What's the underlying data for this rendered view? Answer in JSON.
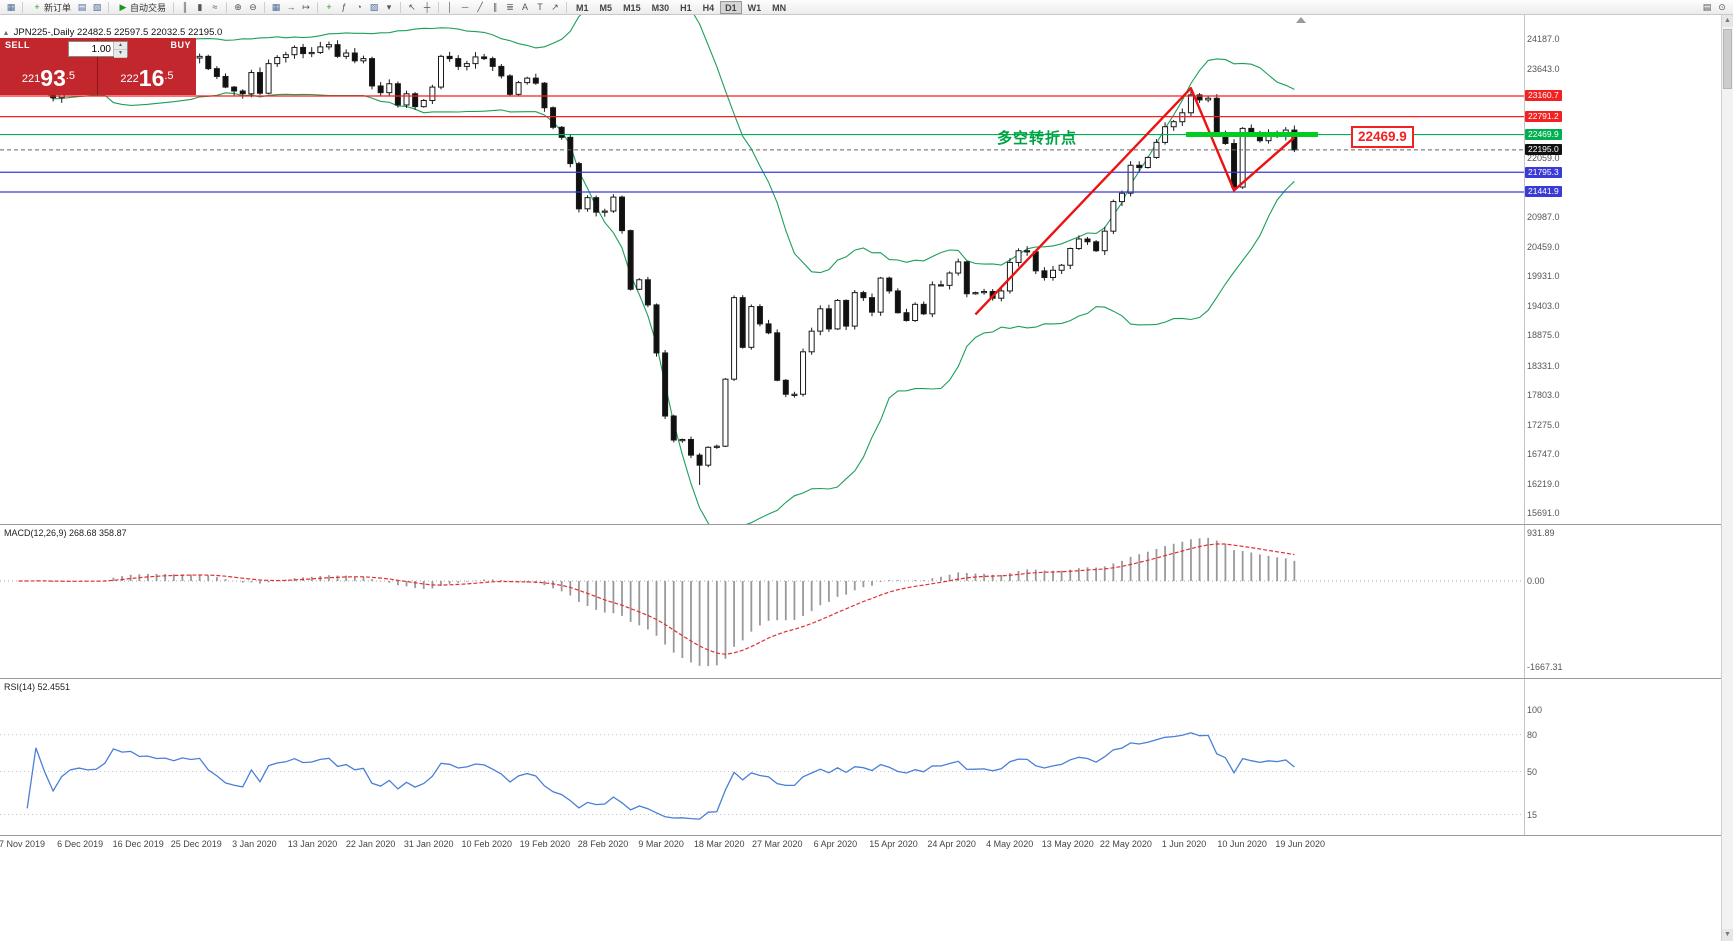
{
  "toolbar": {
    "new_order_label": "新订单",
    "auto_trading_label": "自动交易",
    "timeframes": [
      "M1",
      "M5",
      "M15",
      "M30",
      "H1",
      "H4",
      "D1",
      "W1",
      "MN"
    ],
    "active_timeframe": "D1",
    "icons": {
      "chart": "▦",
      "chart_windows": "▤",
      "profiles": "▧",
      "new_order_plus": "+",
      "autoplay": "▶",
      "bar_chart": "║",
      "candlestick_chart": "▮",
      "line_chart": "≈",
      "zoom_in": "⊕",
      "zoom_out": "⊖",
      "tile_windows": "▦",
      "auto_scroll": "→",
      "chart_shift": "↦",
      "indicators": "ƒ",
      "add_indicator": "+",
      "periods": "◔",
      "templates": "▨",
      "cursor": "↖",
      "crosshair": "┼",
      "vertical_line": "│",
      "horizontal_line": "─",
      "trendline": "╱",
      "channel": "∥",
      "fibonacci": "≣",
      "text": "A",
      "text_label": "T",
      "arrows": "↗",
      "dropdown": "▾",
      "search": "⊙",
      "print": "▤",
      "scroll_up": "▲",
      "scroll_down": "▼"
    }
  },
  "header": {
    "toggle_icon": "▴",
    "symbol": "JPN225-,Daily",
    "ohlc": "22482.5 22597.5 22032.5 22195.0"
  },
  "trade_panel": {
    "sell_label": "SELL",
    "buy_label": "BUY",
    "lot": "1.00",
    "sell_price": {
      "full": "22193.5",
      "prefix": "221",
      "big": "93",
      "frac": ".5"
    },
    "buy_price": {
      "full": "22216.5",
      "prefix": "222",
      "big": "16",
      "frac": ".5"
    }
  },
  "colors": {
    "resistance_red": "#f32222",
    "support_blue": "#3a3ad6",
    "pivot_green": "#00b050",
    "pivot_segment_green": "#00cc22",
    "current_price_badge": "#111111",
    "bollinger_green": "#1e9e5a",
    "candle_up_fill": "#ffffff",
    "candle_down_fill": "#111111",
    "macd_histogram": "#999999",
    "macd_signal_red": "#e03030",
    "rsi_blue": "#4a7fd8",
    "trend_red": "#ee1111"
  },
  "chart_data": {
    "type": "candlestick",
    "symbol": "JPN225-,Daily",
    "ohlc_display": {
      "open": "22482.5",
      "high": "22597.5",
      "low": "22032.5",
      "close": "22195.0"
    },
    "current_price": 22195.0,
    "y_tick_labels": [
      "24187.0",
      "23643.0",
      "22059.0",
      "20987.0",
      "20459.0",
      "19931.0",
      "19403.0",
      "18875.0",
      "18331.0",
      "17803.0",
      "17275.0",
      "16747.0",
      "16219.0",
      "15691.0"
    ],
    "x_tick_labels": [
      "7 Nov 2019",
      "6 Dec 2019",
      "16 Dec 2019",
      "25 Dec 2019",
      "3 Jan 2020",
      "13 Jan 2020",
      "22 Jan 2020",
      "31 Jan 2020",
      "10 Feb 2020",
      "19 Feb 2020",
      "28 Feb 2020",
      "9 Mar 2020",
      "18 Mar 2020",
      "27 Mar 2020",
      "6 Apr 2020",
      "15 Apr 2020",
      "24 Apr 2020",
      "4 May 2020",
      "13 May 2020",
      "22 May 2020",
      "1 Jun 2020",
      "10 Jun 2020",
      "19 Jun 2020"
    ],
    "closes": [
      23380,
      23410,
      23290,
      23530,
      23380,
      23130,
      23300,
      23410,
      23440,
      23410,
      23420,
      23550,
      24020,
      23950,
      23980,
      23870,
      23880,
      23830,
      23840,
      23790,
      23870,
      23840,
      23870,
      23650,
      23510,
      23320,
      23250,
      23200,
      23580,
      23210,
      23740,
      23850,
      23900,
      24030,
      23920,
      23940,
      24040,
      24080,
      23870,
      23930,
      23790,
      23830,
      23340,
      23220,
      23380,
      23000,
      23200,
      22970,
      23080,
      23320,
      23870,
      23830,
      23690,
      23740,
      23860,
      23830,
      23690,
      23520,
      23190,
      23400,
      23480,
      23390,
      22950,
      22600,
      22420,
      21950,
      21140,
      21340,
      21080,
      21100,
      21350,
      20750,
      19700,
      19870,
      19420,
      18560,
      17430,
      17000,
      17010,
      16730,
      16550,
      16870,
      16890,
      18090,
      19550,
      18660,
      19390,
      19080,
      18920,
      18070,
      17820,
      17820,
      18580,
      18950,
      19350,
      18990,
      19500,
      19040,
      19640,
      19550,
      19290,
      19900,
      19670,
      19280,
      19140,
      19430,
      19260,
      19780,
      19770,
      19990,
      20190,
      19620,
      19640,
      19660,
      19540,
      19670,
      20180,
      20390,
      20370,
      20030,
      19910,
      20040,
      20130,
      20430,
      20600,
      20550,
      20390,
      20740,
      21270,
      21420,
      21920,
      21880,
      22060,
      22330,
      22610,
      22700,
      22860,
      23180,
      23090,
      23120,
      22470,
      22310,
      21530,
      22580,
      22460,
      22360,
      22480,
      22440,
      22550,
      22195
    ],
    "horizontal_lines": [
      {
        "price": 23160.7,
        "label": "23160.7",
        "color": "#f32222"
      },
      {
        "price": 22791.2,
        "label": "22791.2",
        "color": "#f32222"
      },
      {
        "price": 22469.9,
        "label": "22469.9",
        "color": "#00b050"
      },
      {
        "price": 21795.3,
        "label": "21795.3",
        "color": "#3a3ad6"
      },
      {
        "price": 21441.9,
        "label": "21441.9",
        "color": "#3a3ad6"
      }
    ],
    "current_price_label": "22195.0",
    "indicators": {
      "bollinger": {
        "period": 20,
        "deviation": 2
      },
      "macd": {
        "label": "MACD(12,26,9) 268.68 358.87",
        "axis": [
          "931.89",
          "0.00",
          "-1667.31"
        ]
      },
      "rsi": {
        "label": "RSI(14) 52.4551",
        "axis": [
          "100",
          "80",
          "50",
          "15"
        ]
      }
    },
    "annotations": {
      "pivot_text": "多空转折点",
      "pivot_price_label": "22469.9",
      "pivot_segment_price": 22469.9,
      "trend_line_points": [
        [
          112,
          19250
        ],
        [
          137,
          23300
        ],
        [
          142,
          21470
        ],
        [
          149,
          22420
        ]
      ]
    }
  }
}
